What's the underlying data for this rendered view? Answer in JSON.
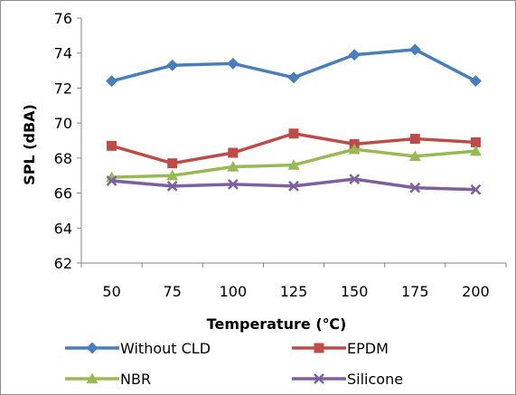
{
  "chart_data": {
    "type": "line",
    "title": "",
    "xlabel": "Temperature (℃)",
    "ylabel": "SPL (dBA)",
    "categories": [
      "50",
      "75",
      "100",
      "125",
      "150",
      "175",
      "200"
    ],
    "ylim": [
      62,
      76
    ],
    "yticks": [
      "62",
      "64",
      "66",
      "68",
      "70",
      "72",
      "74",
      "76"
    ],
    "grid": false,
    "legend_position": "bottom",
    "series": [
      {
        "name": "Without CLD",
        "color": "#4a7ebb",
        "marker": "diamond",
        "values": [
          72.4,
          73.3,
          73.4,
          72.6,
          73.9,
          74.2,
          72.4
        ]
      },
      {
        "name": "EPDM",
        "color": "#be4b48",
        "marker": "square",
        "values": [
          68.7,
          67.7,
          68.3,
          69.4,
          68.8,
          69.1,
          68.9
        ]
      },
      {
        "name": "NBR",
        "color": "#98b954",
        "marker": "triangle",
        "values": [
          66.9,
          67.0,
          67.5,
          67.6,
          68.5,
          68.1,
          68.4
        ]
      },
      {
        "name": "Silicone",
        "color": "#7d60a0",
        "marker": "x",
        "values": [
          66.7,
          66.4,
          66.5,
          66.4,
          66.8,
          66.3,
          66.2
        ]
      }
    ]
  }
}
